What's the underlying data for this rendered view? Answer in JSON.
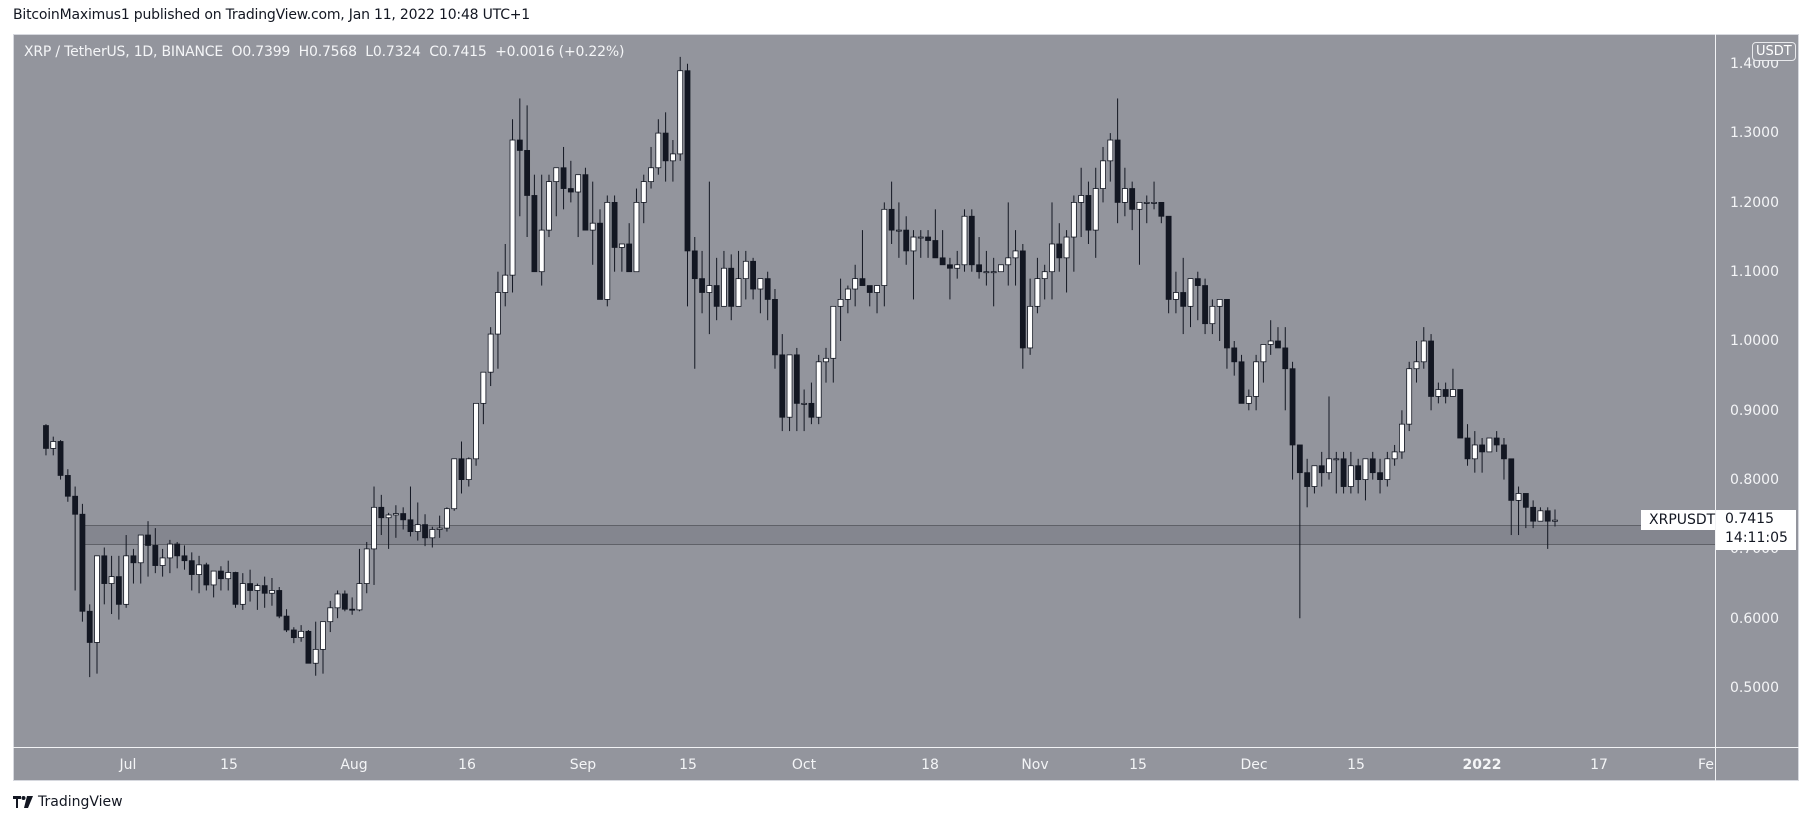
{
  "header": {
    "published": "BitcoinMaximus1 published on TradingView.com, Jan 11, 2022 10:48 UTC+1"
  },
  "legend": {
    "symbol": "XRP / TetherUS, 1D, BINANCE",
    "open_label": "O",
    "open": "0.7399",
    "high_label": "H",
    "high": "0.7568",
    "low_label": "L",
    "low": "0.7324",
    "close_label": "C",
    "close": "0.7415",
    "change": "+0.0016 (+0.22%)"
  },
  "price_axis": {
    "unit": "USDT",
    "labels": [
      "1.4000",
      "1.3000",
      "1.2000",
      "1.1000",
      "1.0000",
      "0.9000",
      "0.8000",
      "0.7000",
      "0.6000",
      "0.5000"
    ]
  },
  "time_axis": {
    "labels": [
      "Jul",
      "15",
      "Aug",
      "16",
      "Sep",
      "15",
      "Oct",
      "18",
      "Nov",
      "15",
      "Dec",
      "15",
      "2022",
      "17",
      "Fe"
    ]
  },
  "price_marker": {
    "symbol": "XRPUSDT",
    "price": "0.7415",
    "countdown": "14:11:05"
  },
  "footer": {
    "brand": "TradingView"
  },
  "colors": {
    "background": "#93959d",
    "up_body": "#ffffff",
    "down_body": "#131722",
    "wick": "#131722",
    "zone_fill": "#84868f",
    "zone_border": "#5f6168",
    "text": "#f4f5f7"
  },
  "chart_data": {
    "type": "candlestick",
    "title": "XRP / TetherUS, 1D, BINANCE",
    "xlabel": "",
    "ylabel": "USDT",
    "ylim": [
      0.42,
      1.42
    ],
    "grid": false,
    "start_date": "2021-06-15",
    "end_date": "2022-01-11",
    "support_zone": {
      "low": 0.7056,
      "high": 0.7344,
      "start_date": "2021-06-24"
    },
    "last": {
      "open": 0.7399,
      "high": 0.7568,
      "low": 0.7324,
      "close": 0.7415
    },
    "ohlc": [
      [
        0.878,
        0.88,
        0.835,
        0.845
      ],
      [
        0.845,
        0.862,
        0.835,
        0.855
      ],
      [
        0.855,
        0.857,
        0.8,
        0.806
      ],
      [
        0.806,
        0.815,
        0.768,
        0.776
      ],
      [
        0.776,
        0.79,
        0.64,
        0.75
      ],
      [
        0.75,
        0.765,
        0.595,
        0.61
      ],
      [
        0.61,
        0.62,
        0.515,
        0.565
      ],
      [
        0.565,
        0.68,
        0.52,
        0.69
      ],
      [
        0.69,
        0.702,
        0.62,
        0.65
      ],
      [
        0.65,
        0.69,
        0.606,
        0.66
      ],
      [
        0.66,
        0.69,
        0.598,
        0.62
      ],
      [
        0.62,
        0.72,
        0.615,
        0.69
      ],
      [
        0.69,
        0.7,
        0.65,
        0.68
      ],
      [
        0.68,
        0.71,
        0.65,
        0.72
      ],
      [
        0.72,
        0.74,
        0.66,
        0.705
      ],
      [
        0.705,
        0.73,
        0.665,
        0.676
      ],
      [
        0.676,
        0.7,
        0.66,
        0.687
      ],
      [
        0.687,
        0.713,
        0.665,
        0.707
      ],
      [
        0.707,
        0.71,
        0.672,
        0.69
      ],
      [
        0.69,
        0.705,
        0.67,
        0.683
      ],
      [
        0.683,
        0.695,
        0.64,
        0.663
      ],
      [
        0.663,
        0.69,
        0.636,
        0.677
      ],
      [
        0.677,
        0.68,
        0.64,
        0.648
      ],
      [
        0.648,
        0.66,
        0.63,
        0.668
      ],
      [
        0.668,
        0.675,
        0.64,
        0.657
      ],
      [
        0.657,
        0.683,
        0.64,
        0.666
      ],
      [
        0.666,
        0.667,
        0.615,
        0.62
      ],
      [
        0.62,
        0.665,
        0.612,
        0.65
      ],
      [
        0.65,
        0.67,
        0.624,
        0.64
      ],
      [
        0.64,
        0.65,
        0.612,
        0.647
      ],
      [
        0.647,
        0.66,
        0.615,
        0.636
      ],
      [
        0.636,
        0.658,
        0.618,
        0.64
      ],
      [
        0.64,
        0.645,
        0.6,
        0.603
      ],
      [
        0.603,
        0.613,
        0.58,
        0.583
      ],
      [
        0.583,
        0.587,
        0.564,
        0.572
      ],
      [
        0.572,
        0.59,
        0.566,
        0.581
      ],
      [
        0.581,
        0.583,
        0.535,
        0.535
      ],
      [
        0.535,
        0.595,
        0.517,
        0.555
      ],
      [
        0.555,
        0.59,
        0.52,
        0.595
      ],
      [
        0.595,
        0.625,
        0.58,
        0.615
      ],
      [
        0.615,
        0.64,
        0.6,
        0.635
      ],
      [
        0.635,
        0.64,
        0.61,
        0.613
      ],
      [
        0.613,
        0.63,
        0.605,
        0.612
      ],
      [
        0.612,
        0.7,
        0.61,
        0.65
      ],
      [
        0.65,
        0.71,
        0.636,
        0.7
      ],
      [
        0.7,
        0.79,
        0.648,
        0.76
      ],
      [
        0.76,
        0.778,
        0.72,
        0.745
      ],
      [
        0.745,
        0.752,
        0.7,
        0.749
      ],
      [
        0.749,
        0.763,
        0.716,
        0.751
      ],
      [
        0.751,
        0.76,
        0.728,
        0.742
      ],
      [
        0.742,
        0.79,
        0.718,
        0.725
      ],
      [
        0.725,
        0.767,
        0.712,
        0.735
      ],
      [
        0.735,
        0.75,
        0.704,
        0.716
      ],
      [
        0.716,
        0.732,
        0.702,
        0.728
      ],
      [
        0.728,
        0.748,
        0.716,
        0.73
      ],
      [
        0.73,
        0.76,
        0.725,
        0.758
      ],
      [
        0.758,
        0.825,
        0.755,
        0.83
      ],
      [
        0.83,
        0.855,
        0.78,
        0.8
      ],
      [
        0.8,
        0.832,
        0.79,
        0.83
      ],
      [
        0.83,
        0.865,
        0.82,
        0.91
      ],
      [
        0.91,
        0.93,
        0.88,
        0.955
      ],
      [
        0.955,
        1.02,
        0.935,
        1.01
      ],
      [
        1.01,
        1.1,
        0.96,
        1.07
      ],
      [
        1.07,
        1.14,
        1.05,
        1.095
      ],
      [
        1.095,
        1.32,
        1.07,
        1.29
      ],
      [
        1.29,
        1.35,
        1.18,
        1.275
      ],
      [
        1.275,
        1.34,
        1.15,
        1.21
      ],
      [
        1.21,
        1.24,
        1.11,
        1.1
      ],
      [
        1.1,
        1.24,
        1.08,
        1.16
      ],
      [
        1.16,
        1.24,
        1.15,
        1.23
      ],
      [
        1.23,
        1.25,
        1.18,
        1.25
      ],
      [
        1.25,
        1.28,
        1.19,
        1.22
      ],
      [
        1.22,
        1.26,
        1.2,
        1.215
      ],
      [
        1.215,
        1.23,
        1.15,
        1.24
      ],
      [
        1.24,
        1.25,
        1.16,
        1.16
      ],
      [
        1.16,
        1.23,
        1.11,
        1.17
      ],
      [
        1.17,
        1.19,
        1.11,
        1.06
      ],
      [
        1.06,
        1.21,
        1.05,
        1.2
      ],
      [
        1.2,
        1.21,
        1.1,
        1.135
      ],
      [
        1.135,
        1.14,
        1.1,
        1.14
      ],
      [
        1.14,
        1.17,
        1.1,
        1.1
      ],
      [
        1.1,
        1.22,
        1.11,
        1.2
      ],
      [
        1.2,
        1.24,
        1.17,
        1.23
      ],
      [
        1.23,
        1.28,
        1.22,
        1.25
      ],
      [
        1.25,
        1.32,
        1.24,
        1.3
      ],
      [
        1.3,
        1.33,
        1.23,
        1.26
      ],
      [
        1.26,
        1.29,
        1.23,
        1.27
      ],
      [
        1.27,
        1.41,
        1.26,
        1.39
      ],
      [
        1.39,
        1.4,
        1.05,
        1.13
      ],
      [
        1.13,
        1.15,
        0.96,
        1.09
      ],
      [
        1.09,
        1.13,
        1.04,
        1.07
      ],
      [
        1.07,
        1.23,
        1.01,
        1.08
      ],
      [
        1.08,
        1.12,
        1.03,
        1.05
      ],
      [
        1.05,
        1.13,
        1.05,
        1.105
      ],
      [
        1.105,
        1.125,
        1.03,
        1.05
      ],
      [
        1.05,
        1.13,
        1.05,
        1.09
      ],
      [
        1.09,
        1.13,
        1.06,
        1.115
      ],
      [
        1.115,
        1.12,
        1.06,
        1.075
      ],
      [
        1.075,
        1.09,
        1.04,
        1.09
      ],
      [
        1.09,
        1.1,
        1.03,
        1.06
      ],
      [
        1.06,
        1.075,
        0.96,
        0.98
      ],
      [
        0.98,
        1.01,
        0.87,
        0.89
      ],
      [
        0.89,
        0.96,
        0.87,
        0.98
      ],
      [
        0.98,
        0.99,
        0.87,
        0.91
      ],
      [
        0.91,
        0.93,
        0.87,
        0.91
      ],
      [
        0.91,
        0.94,
        0.88,
        0.89
      ],
      [
        0.89,
        0.98,
        0.88,
        0.97
      ],
      [
        0.97,
        0.99,
        0.94,
        0.975
      ],
      [
        0.975,
        1.0,
        0.94,
        1.05
      ],
      [
        1.05,
        1.09,
        1.0,
        1.06
      ],
      [
        1.06,
        1.08,
        1.04,
        1.075
      ],
      [
        1.075,
        1.11,
        1.05,
        1.09
      ],
      [
        1.09,
        1.16,
        1.09,
        1.08
      ],
      [
        1.08,
        1.08,
        1.05,
        1.07
      ],
      [
        1.07,
        1.08,
        1.04,
        1.08
      ],
      [
        1.08,
        1.2,
        1.05,
        1.19
      ],
      [
        1.19,
        1.23,
        1.14,
        1.16
      ],
      [
        1.16,
        1.2,
        1.12,
        1.16
      ],
      [
        1.16,
        1.18,
        1.11,
        1.13
      ],
      [
        1.13,
        1.16,
        1.06,
        1.15
      ],
      [
        1.15,
        1.16,
        1.12,
        1.15
      ],
      [
        1.15,
        1.16,
        1.12,
        1.145
      ],
      [
        1.145,
        1.19,
        1.12,
        1.12
      ],
      [
        1.12,
        1.16,
        1.11,
        1.11
      ],
      [
        1.11,
        1.12,
        1.06,
        1.105
      ],
      [
        1.105,
        1.13,
        1.09,
        1.11
      ],
      [
        1.11,
        1.19,
        1.1,
        1.18
      ],
      [
        1.18,
        1.19,
        1.1,
        1.11
      ],
      [
        1.11,
        1.15,
        1.09,
        1.1
      ],
      [
        1.1,
        1.13,
        1.08,
        1.1
      ],
      [
        1.1,
        1.12,
        1.05,
        1.1
      ],
      [
        1.1,
        1.11,
        1.1,
        1.11
      ],
      [
        1.11,
        1.2,
        1.08,
        1.12
      ],
      [
        1.12,
        1.16,
        1.08,
        1.13
      ],
      [
        1.13,
        1.14,
        0.96,
        0.99
      ],
      [
        0.99,
        1.09,
        0.98,
        1.05
      ],
      [
        1.05,
        1.12,
        1.04,
        1.09
      ],
      [
        1.09,
        1.11,
        1.06,
        1.1
      ],
      [
        1.1,
        1.2,
        1.06,
        1.14
      ],
      [
        1.14,
        1.17,
        1.1,
        1.12
      ],
      [
        1.12,
        1.16,
        1.07,
        1.15
      ],
      [
        1.15,
        1.21,
        1.1,
        1.2
      ],
      [
        1.2,
        1.25,
        1.15,
        1.21
      ],
      [
        1.21,
        1.23,
        1.14,
        1.16
      ],
      [
        1.16,
        1.25,
        1.12,
        1.22
      ],
      [
        1.22,
        1.28,
        1.2,
        1.26
      ],
      [
        1.26,
        1.3,
        1.23,
        1.29
      ],
      [
        1.29,
        1.35,
        1.17,
        1.2
      ],
      [
        1.2,
        1.25,
        1.18,
        1.22
      ],
      [
        1.22,
        1.23,
        1.16,
        1.19
      ],
      [
        1.19,
        1.2,
        1.11,
        1.2
      ],
      [
        1.2,
        1.21,
        1.17,
        1.2
      ],
      [
        1.2,
        1.23,
        1.19,
        1.2
      ],
      [
        1.2,
        1.2,
        1.17,
        1.18
      ],
      [
        1.18,
        1.18,
        1.04,
        1.06
      ],
      [
        1.06,
        1.1,
        1.04,
        1.07
      ],
      [
        1.07,
        1.12,
        1.01,
        1.05
      ],
      [
        1.05,
        1.07,
        1.02,
        1.09
      ],
      [
        1.09,
        1.1,
        1.03,
        1.08
      ],
      [
        1.08,
        1.09,
        1.01,
        1.025
      ],
      [
        1.025,
        1.06,
        1.01,
        1.05
      ],
      [
        1.05,
        1.06,
        1.0,
        1.06
      ],
      [
        1.06,
        1.05,
        0.96,
        0.99
      ],
      [
        0.99,
        1.0,
        0.95,
        0.97
      ],
      [
        0.97,
        0.98,
        0.92,
        0.91
      ],
      [
        0.91,
        0.93,
        0.9,
        0.92
      ],
      [
        0.92,
        0.98,
        0.9,
        0.97
      ],
      [
        0.97,
        0.99,
        0.94,
        0.995
      ],
      [
        0.995,
        1.03,
        0.98,
        1.0
      ],
      [
        1.0,
        1.02,
        0.99,
        0.99
      ],
      [
        0.99,
        1.02,
        0.9,
        0.96
      ],
      [
        0.96,
        0.97,
        0.8,
        0.85
      ],
      [
        0.85,
        0.85,
        0.6,
        0.81
      ],
      [
        0.81,
        0.83,
        0.76,
        0.79
      ],
      [
        0.79,
        0.8,
        0.78,
        0.82
      ],
      [
        0.82,
        0.84,
        0.79,
        0.81
      ],
      [
        0.81,
        0.92,
        0.8,
        0.83
      ],
      [
        0.83,
        0.84,
        0.78,
        0.83
      ],
      [
        0.83,
        0.84,
        0.78,
        0.79
      ],
      [
        0.79,
        0.84,
        0.78,
        0.82
      ],
      [
        0.82,
        0.83,
        0.78,
        0.8
      ],
      [
        0.8,
        0.83,
        0.77,
        0.83
      ],
      [
        0.83,
        0.84,
        0.8,
        0.81
      ],
      [
        0.81,
        0.83,
        0.78,
        0.8
      ],
      [
        0.8,
        0.84,
        0.79,
        0.83
      ],
      [
        0.83,
        0.85,
        0.82,
        0.84
      ],
      [
        0.84,
        0.9,
        0.83,
        0.88
      ],
      [
        0.88,
        0.97,
        0.87,
        0.96
      ],
      [
        0.96,
        1.0,
        0.94,
        0.97
      ],
      [
        0.97,
        1.02,
        0.96,
        1.0
      ],
      [
        1.0,
        1.01,
        0.9,
        0.92
      ],
      [
        0.92,
        0.94,
        0.91,
        0.93
      ],
      [
        0.93,
        0.94,
        0.91,
        0.92
      ],
      [
        0.92,
        0.96,
        0.92,
        0.93
      ],
      [
        0.93,
        0.93,
        0.86,
        0.86
      ],
      [
        0.86,
        0.88,
        0.82,
        0.83
      ],
      [
        0.83,
        0.87,
        0.81,
        0.85
      ],
      [
        0.85,
        0.86,
        0.81,
        0.84
      ],
      [
        0.84,
        0.86,
        0.84,
        0.86
      ],
      [
        0.86,
        0.87,
        0.84,
        0.85
      ],
      [
        0.85,
        0.86,
        0.8,
        0.83
      ],
      [
        0.83,
        0.83,
        0.72,
        0.77
      ],
      [
        0.77,
        0.79,
        0.72,
        0.78
      ],
      [
        0.78,
        0.78,
        0.73,
        0.76
      ],
      [
        0.76,
        0.77,
        0.73,
        0.74
      ],
      [
        0.74,
        0.76,
        0.74,
        0.755
      ],
      [
        0.755,
        0.76,
        0.7,
        0.74
      ],
      [
        0.7399,
        0.7568,
        0.7324,
        0.7415
      ]
    ]
  }
}
